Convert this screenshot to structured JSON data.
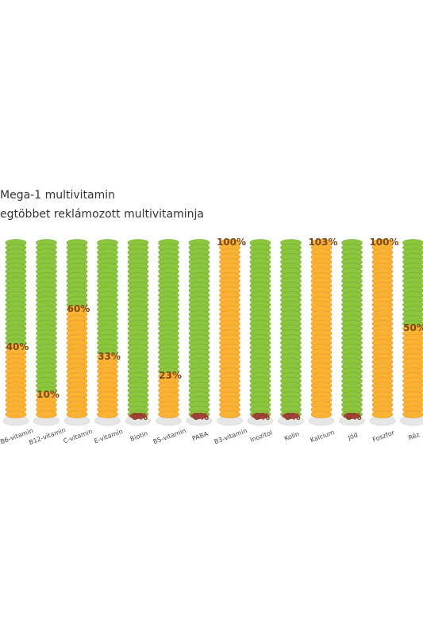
{
  "legend": {
    "line1": "Mega-1 multivitamin",
    "line2": "egtöbbet reklámozott multivitaminja"
  },
  "chart_data": {
    "type": "bar",
    "title": "",
    "xlabel": "",
    "ylabel": "",
    "ylim": [
      0,
      100
    ],
    "grid": false,
    "categories": [
      "B6-vitamin",
      "B12-vitamin",
      "C-vitamin",
      "E-vitamin",
      "Biotin",
      "B5-vitamin",
      "PABA",
      "B3-vitamin",
      "Inozitol",
      "Kolin",
      "Kalcium",
      "Jód",
      "Foszfor",
      "Réz"
    ],
    "values": [
      40,
      10,
      60,
      33,
      0,
      23,
      0,
      100,
      0,
      0,
      103,
      0,
      100,
      50
    ],
    "data_labels": [
      "40%",
      "10%",
      "60%",
      "33%",
      "0%",
      "23%",
      "0%",
      "100%",
      "0%",
      "0%",
      "103%",
      "0%",
      "100%",
      "50%"
    ],
    "colors": {
      "reference_stack": "#8cc63f",
      "reference_dark": "#6fa82a",
      "product_stack": "#f9b233",
      "product_dark": "#e8961a",
      "zero_disc": "#c0224a",
      "base": "#e6e6e6"
    }
  }
}
